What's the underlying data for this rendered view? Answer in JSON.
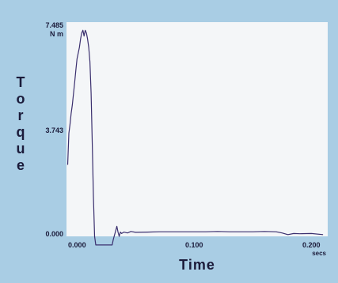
{
  "chart_data": {
    "type": "line",
    "title": "",
    "xlabel": "Time",
    "ylabel": "Torque",
    "ylabel_letters": [
      "T",
      "o",
      "r",
      "q",
      "u",
      "e"
    ],
    "y_top_label": "7.485",
    "y_unit": "N m",
    "y_mid_label": "3.743",
    "y_bottom_label": "0.000",
    "x_tick_labels": [
      "0.000",
      "0.100",
      "0.200"
    ],
    "x_unit": "secs",
    "xlim": [
      -0.009,
      0.214
    ],
    "ylim": [
      0,
      7.485
    ],
    "x_ticks": [
      0.0,
      0.1,
      0.2
    ],
    "y_ticks": [
      0.0,
      3.743,
      7.485
    ],
    "grid": false,
    "series": [
      {
        "color": "#3a2f6e",
        "x": [
          -0.008,
          -0.007,
          -0.006,
          -0.005,
          -0.004,
          -0.003,
          -0.002,
          -0.001,
          0.0,
          0.001,
          0.002,
          0.003,
          0.004,
          0.005,
          0.006,
          0.007,
          0.008,
          0.009,
          0.01,
          0.011,
          0.012,
          0.013,
          0.014,
          0.015,
          0.016,
          0.017,
          0.0175,
          0.03,
          0.031,
          0.032,
          0.033,
          0.034,
          0.035,
          0.036,
          0.037,
          0.038,
          0.04,
          0.043,
          0.046,
          0.05,
          0.06,
          0.07,
          0.08,
          0.09,
          0.1,
          0.11,
          0.12,
          0.13,
          0.14,
          0.15,
          0.16,
          0.17,
          0.175,
          0.18,
          0.185,
          0.19,
          0.2,
          0.21
        ],
        "y": [
          2.5,
          3.6,
          3.9,
          4.3,
          4.6,
          5.0,
          5.4,
          5.8,
          6.2,
          6.4,
          6.6,
          6.9,
          7.1,
          7.2,
          7.0,
          7.2,
          7.1,
          6.9,
          6.6,
          6.1,
          5.0,
          3.2,
          1.4,
          0.0,
          -0.3,
          -0.3,
          -0.3,
          -0.3,
          -0.1,
          0.05,
          0.2,
          0.35,
          0.15,
          0.0,
          0.15,
          0.1,
          0.15,
          0.12,
          0.17,
          0.14,
          0.15,
          0.16,
          0.16,
          0.16,
          0.16,
          0.16,
          0.17,
          0.16,
          0.16,
          0.16,
          0.17,
          0.16,
          0.12,
          0.06,
          0.1,
          0.09,
          0.1,
          0.06
        ]
      }
    ]
  }
}
